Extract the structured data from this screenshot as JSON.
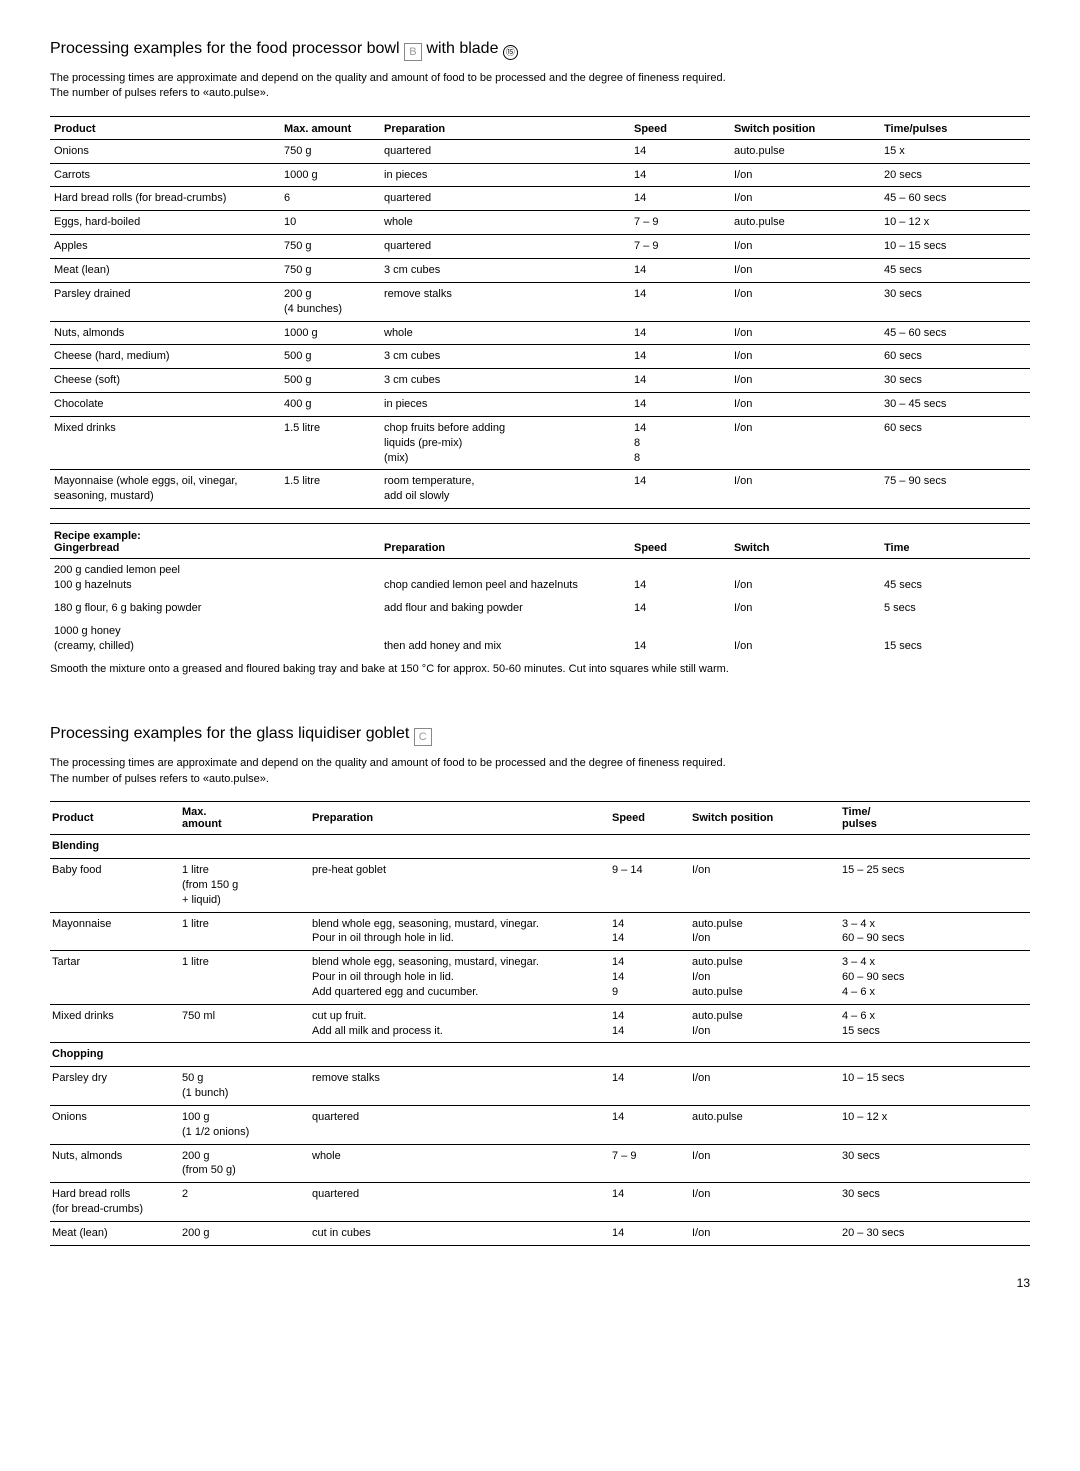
{
  "section1": {
    "title_pre": "Processing examples for the food processor bowl",
    "title_post": "with blade",
    "icon_letter": "B",
    "icon_symbol": "⑮",
    "intro_l1": "The processing times are approximate and depend on the quality and amount of food to be processed and the degree of fineness required.",
    "intro_l2": "The number of pulses refers to «auto.pulse».",
    "headers": {
      "product": "Product",
      "max": "Max. amount",
      "prep": "Preparation",
      "speed": "Speed",
      "switch": "Switch position",
      "time": "Time/pulses"
    },
    "rows": [
      {
        "product": "Onions",
        "max": "750 g",
        "prep": "quartered",
        "speed": "14",
        "switch": "auto.pulse",
        "time": "15 x"
      },
      {
        "product": "Carrots",
        "max": "1000 g",
        "prep": "in pieces",
        "speed": "14",
        "switch": "I/on",
        "time": "20 secs"
      },
      {
        "product": "Hard bread rolls (for bread-crumbs)",
        "max": "6",
        "prep": "quartered",
        "speed": "14",
        "switch": "I/on",
        "time": "45 – 60 secs"
      },
      {
        "product": "Eggs, hard-boiled",
        "max": "10",
        "prep": "whole",
        "speed": "7 – 9",
        "switch": "auto.pulse",
        "time": "10 – 12 x"
      },
      {
        "product": "Apples",
        "max": "750 g",
        "prep": "quartered",
        "speed": "7 – 9",
        "switch": "I/on",
        "time": "10 – 15 secs"
      },
      {
        "product": "Meat (lean)",
        "max": "750 g",
        "prep": "3 cm cubes",
        "speed": "14",
        "switch": "I/on",
        "time": "45 secs"
      },
      {
        "product": "Parsley drained",
        "max": "200 g\n(4 bunches)",
        "prep": "remove stalks",
        "speed": "14",
        "switch": "I/on",
        "time": "30 secs"
      },
      {
        "product": "Nuts, almonds",
        "max": "1000 g",
        "prep": "whole",
        "speed": "14",
        "switch": "I/on",
        "time": "45 – 60 secs"
      },
      {
        "product": "Cheese (hard, medium)",
        "max": "500 g",
        "prep": "3 cm cubes",
        "speed": "14",
        "switch": "I/on",
        "time": "60 secs"
      },
      {
        "product": "Cheese (soft)",
        "max": "500 g",
        "prep": "3 cm cubes",
        "speed": "14",
        "switch": "I/on",
        "time": "30 secs"
      },
      {
        "product": "Chocolate",
        "max": "400 g",
        "prep": "in pieces",
        "speed": "14",
        "switch": "I/on",
        "time": "30 – 45 secs"
      },
      {
        "product": "Mixed drinks",
        "max": "1.5 litre",
        "prep": "chop fruits before adding\nliquids (pre-mix)\n(mix)",
        "speed": "14\n8\n8",
        "switch": "I/on",
        "time": "60 secs"
      },
      {
        "product": "Mayonnaise (whole eggs, oil, vinegar, seasoning, mustard)",
        "max": "1.5 litre",
        "prep": "room temperature,\nadd oil slowly",
        "speed": "14",
        "switch": "I/on",
        "time": "75 – 90 secs"
      }
    ]
  },
  "recipe": {
    "label_l1": "Recipe example:",
    "label_l2": "Gingerbread",
    "headers": {
      "prep": "Preparation",
      "speed": "Speed",
      "switch": "Switch",
      "time": "Time"
    },
    "rows": [
      {
        "item": "200 g candied lemon peel\n100 g hazelnuts",
        "prep": "chop candied lemon peel and hazelnuts",
        "speed": "14",
        "switch": "I/on",
        "time": "45 secs"
      },
      {
        "item": "180 g flour, 6 g baking powder",
        "prep": "add flour and baking powder",
        "speed": "14",
        "switch": "I/on",
        "time": "5 secs"
      },
      {
        "item": "1000 g honey\n(creamy, chilled)",
        "prep": "then add honey and mix",
        "speed": "14",
        "switch": "I/on",
        "time": "15 secs"
      }
    ],
    "note": "Smooth the mixture onto a greased and floured baking tray and bake at 150 °C for approx. 50-60 minutes. Cut into squares while still warm."
  },
  "section2": {
    "title": "Processing examples for the glass liquidiser goblet",
    "icon_letter": "C",
    "intro_l1": "The processing times are approximate and depend on the quality and amount of food to be processed and the degree of fineness required.",
    "intro_l2": "The number of pulses refers to «auto.pulse».",
    "headers": {
      "product": "Product",
      "max": "Max.\namount",
      "prep": "Preparation",
      "speed": "Speed",
      "switch": "Switch position",
      "time": "Time/\npulses"
    },
    "blending_label": "Blending",
    "blending_rows": [
      {
        "product": "Baby food",
        "max": "1 litre\n(from 150 g\n+ liquid)",
        "prep": "pre-heat goblet",
        "speed": "9 – 14",
        "switch": "I/on",
        "time": "15 – 25 secs"
      },
      {
        "product": "Mayonnaise",
        "max": "1 litre",
        "prep": "blend whole egg, seasoning, mustard, vinegar.\nPour in oil through hole in lid.",
        "speed": "14\n14",
        "switch": "auto.pulse\nI/on",
        "time": "3 – 4 x\n60 – 90 secs"
      },
      {
        "product": "Tartar",
        "max": "1 litre",
        "prep": "blend whole egg, seasoning, mustard, vinegar.\nPour in oil through hole in lid.\nAdd quartered egg and cucumber.",
        "speed": "14\n14\n9",
        "switch": "auto.pulse\nI/on\nauto.pulse",
        "time": "3 – 4 x\n60 – 90 secs\n4 – 6 x"
      },
      {
        "product": "Mixed drinks",
        "max": "750 ml",
        "prep": "cut up fruit.\nAdd all milk and process it.",
        "speed": "14\n14",
        "switch": "auto.pulse\nI/on",
        "time": "4 – 6 x\n15 secs"
      }
    ],
    "chopping_label": "Chopping",
    "chopping_rows": [
      {
        "product": "Parsley dry",
        "max": "50 g\n(1 bunch)",
        "prep": "remove stalks",
        "speed": "14",
        "switch": "I/on",
        "time": "10 – 15 secs"
      },
      {
        "product": "Onions",
        "max": "100 g\n(1 1/2 onions)",
        "prep": "quartered",
        "speed": "14",
        "switch": "auto.pulse",
        "time": "10 – 12 x"
      },
      {
        "product": "Nuts, almonds",
        "max": "200 g\n(from 50 g)",
        "prep": "whole",
        "speed": "7 – 9",
        "switch": "I/on",
        "time": "30 secs"
      },
      {
        "product": "Hard bread rolls\n(for bread-crumbs)",
        "max": "2",
        "prep": "quartered",
        "speed": "14",
        "switch": "I/on",
        "time": "30 secs"
      },
      {
        "product": "Meat (lean)",
        "max": "200 g",
        "prep": "cut in cubes",
        "speed": "14",
        "switch": "I/on",
        "time": "20 – 30 secs"
      }
    ]
  },
  "page_number": "13",
  "col_widths": {
    "t1": [
      "230",
      "100",
      "250",
      "100",
      "150",
      "auto"
    ],
    "tr": [
      "330",
      "250",
      "100",
      "150",
      "auto"
    ],
    "t2": [
      "130",
      "130",
      "300",
      "80",
      "150",
      "auto"
    ]
  }
}
